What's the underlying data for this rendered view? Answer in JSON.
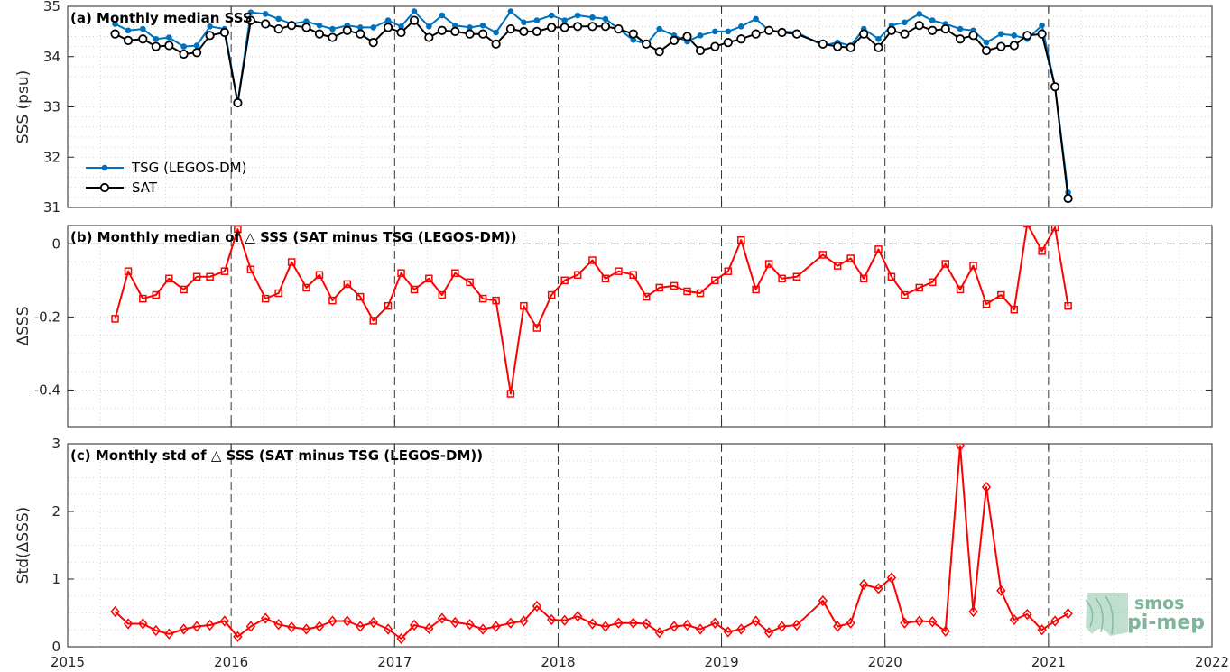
{
  "chart_data": [
    {
      "type": "line",
      "title": "(a) Monthly median SSS",
      "ylabel": "SSS (psu)",
      "xlim": [
        2015,
        2022
      ],
      "ylim": [
        31,
        35
      ],
      "yticks": [
        31,
        32,
        33,
        34,
        35
      ],
      "grid": true,
      "legend": "middle-left",
      "x": [
        2015.29,
        2015.37,
        2015.46,
        2015.54,
        2015.62,
        2015.71,
        2015.79,
        2015.87,
        2015.96,
        2016.04,
        2016.12,
        2016.21,
        2016.29,
        2016.37,
        2016.46,
        2016.54,
        2016.62,
        2016.71,
        2016.79,
        2016.87,
        2016.96,
        2017.04,
        2017.12,
        2017.21,
        2017.29,
        2017.37,
        2017.46,
        2017.54,
        2017.62,
        2017.71,
        2017.79,
        2017.87,
        2017.96,
        2018.04,
        2018.12,
        2018.21,
        2018.29,
        2018.37,
        2018.46,
        2018.54,
        2018.62,
        2018.71,
        2018.79,
        2018.87,
        2018.96,
        2019.04,
        2019.12,
        2019.21,
        2019.29,
        2019.37,
        2019.46,
        2019.62,
        2019.71,
        2019.79,
        2019.87,
        2019.96,
        2020.04,
        2020.12,
        2020.21,
        2020.29,
        2020.37,
        2020.46,
        2020.54,
        2020.62,
        2020.71,
        2020.79,
        2020.87,
        2020.96,
        2021.04,
        2021.12
      ],
      "series": [
        {
          "name": "TSG (LEGOS-DM)",
          "color": "#0072bd",
          "marker": "dot",
          "values": [
            34.65,
            34.52,
            34.55,
            34.35,
            34.38,
            34.2,
            34.22,
            34.6,
            34.55,
            33.08,
            34.88,
            34.85,
            34.75,
            34.65,
            34.7,
            34.62,
            34.55,
            34.62,
            34.58,
            34.58,
            34.72,
            34.6,
            34.9,
            34.6,
            34.82,
            34.62,
            34.58,
            34.62,
            34.48,
            34.9,
            34.68,
            34.72,
            34.82,
            34.72,
            34.82,
            34.78,
            34.75,
            34.55,
            34.33,
            34.25,
            34.55,
            34.42,
            34.3,
            34.42,
            34.5,
            34.5,
            34.6,
            34.75,
            34.52,
            34.5,
            34.48,
            34.22,
            34.28,
            34.22,
            34.55,
            34.35,
            34.62,
            34.68,
            34.85,
            34.72,
            34.65,
            34.55,
            34.52,
            34.28,
            34.45,
            34.42,
            34.35,
            34.62,
            33.4,
            31.3
          ]
        },
        {
          "name": "SAT",
          "color": "#000000",
          "marker": "circle",
          "values": [
            34.45,
            34.32,
            34.35,
            34.2,
            34.22,
            34.05,
            34.08,
            34.42,
            34.48,
            33.08,
            34.72,
            34.65,
            34.55,
            34.62,
            34.58,
            34.45,
            34.38,
            34.52,
            34.45,
            34.28,
            34.58,
            34.48,
            34.72,
            34.38,
            34.52,
            34.5,
            34.45,
            34.45,
            34.25,
            34.55,
            34.5,
            34.5,
            34.58,
            34.58,
            34.6,
            34.6,
            34.6,
            34.55,
            34.45,
            34.25,
            34.1,
            34.32,
            34.4,
            34.12,
            34.2,
            34.28,
            34.35,
            34.45,
            34.52,
            34.48,
            34.45,
            34.25,
            34.2,
            34.18,
            34.45,
            34.18,
            34.52,
            34.45,
            34.62,
            34.52,
            34.55,
            34.35,
            34.42,
            34.12,
            34.2,
            34.22,
            34.42,
            34.45,
            33.4,
            31.18
          ]
        }
      ]
    },
    {
      "type": "line",
      "title": "(b) Monthly median of △ SSS (SAT minus TSG (LEGOS-DM))",
      "ylabel": "ΔSSS",
      "xlim": [
        2015,
        2022
      ],
      "ylim": [
        -0.5,
        0.05
      ],
      "yticks": [
        -0.4,
        -0.2,
        0
      ],
      "ytick_labels": [
        "-0.4",
        "-0.2",
        "0"
      ],
      "grid": true,
      "series": [
        {
          "color": "#ff0000",
          "marker": "square",
          "values": [
            -0.205,
            -0.075,
            -0.15,
            -0.14,
            -0.095,
            -0.125,
            -0.09,
            -0.09,
            -0.075,
            0.04,
            -0.07,
            -0.15,
            -0.135,
            -0.05,
            -0.12,
            -0.085,
            -0.155,
            -0.11,
            -0.145,
            -0.21,
            -0.17,
            -0.08,
            -0.125,
            -0.095,
            -0.14,
            -0.08,
            -0.105,
            -0.15,
            -0.155,
            -0.41,
            -0.17,
            -0.23,
            -0.14,
            -0.1,
            -0.085,
            -0.045,
            -0.095,
            -0.075,
            -0.085,
            -0.145,
            -0.12,
            -0.115,
            -0.13,
            -0.135,
            -0.1,
            -0.075,
            0.01,
            -0.125,
            -0.055,
            -0.095,
            -0.09,
            -0.03,
            -0.06,
            -0.04,
            -0.095,
            -0.015,
            -0.09,
            -0.14,
            -0.12,
            -0.105,
            -0.055,
            -0.125,
            -0.06,
            -0.165,
            -0.14,
            -0.18,
            0.055,
            -0.02,
            0.045,
            -0.17
          ]
        }
      ]
    },
    {
      "type": "line",
      "title": "(c) Monthly std of △ SSS (SAT minus TSG (LEGOS-DM))",
      "ylabel": "Std(ΔSSS)",
      "xlabel": "",
      "xlim": [
        2015,
        2022
      ],
      "xticks": [
        2015,
        2016,
        2017,
        2018,
        2019,
        2020,
        2021,
        2022
      ],
      "ylim": [
        0,
        3
      ],
      "yticks": [
        0,
        1,
        2,
        3
      ],
      "grid": true,
      "series": [
        {
          "color": "#ff0000",
          "marker": "diamond",
          "values": [
            0.52,
            0.34,
            0.34,
            0.24,
            0.19,
            0.26,
            0.3,
            0.32,
            0.38,
            0.15,
            0.3,
            0.42,
            0.33,
            0.29,
            0.26,
            0.3,
            0.38,
            0.38,
            0.3,
            0.36,
            0.26,
            0.12,
            0.32,
            0.27,
            0.42,
            0.36,
            0.33,
            0.26,
            0.3,
            0.35,
            0.38,
            0.6,
            0.4,
            0.39,
            0.45,
            0.34,
            0.3,
            0.35,
            0.35,
            0.34,
            0.21,
            0.3,
            0.32,
            0.26,
            0.35,
            0.22,
            0.26,
            0.38,
            0.21,
            0.3,
            0.32,
            0.68,
            0.3,
            0.35,
            0.92,
            0.86,
            1.02,
            0.35,
            0.38,
            0.37,
            0.23,
            2.97,
            0.52,
            2.36,
            0.83,
            0.4,
            0.48,
            0.25,
            0.38,
            0.49
          ]
        }
      ]
    }
  ],
  "logo": {
    "line1": "smos",
    "line2": "pi-mep"
  }
}
